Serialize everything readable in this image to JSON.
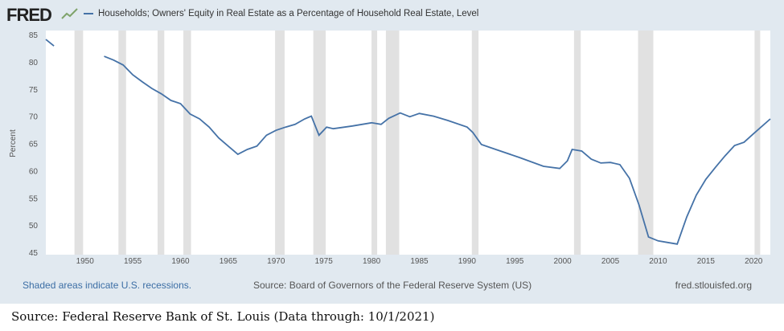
{
  "header": {
    "logo": "FRED",
    "title": "Households; Owners' Equity in Real Estate as a Percentage of Household Real Estate, Level"
  },
  "footer": {
    "recession_note": "Shaded areas indicate U.S. recessions.",
    "source": "Source: Board of Governors of the Federal Reserve System (US)",
    "site": "fred.stlouisfed.org"
  },
  "caption": "Source: Federal Reserve Bank of St. Louis (Data through: 10/1/2021)",
  "colors": {
    "line": "#4572a7",
    "recession": "#e1e1e1",
    "background": "#e1e9f0"
  },
  "chart_data": {
    "type": "line",
    "title": "Households; Owners' Equity in Real Estate as a Percentage of Household Real Estate, Level",
    "ylabel": "Percent",
    "xlabel": "",
    "ylim": [
      45,
      85
    ],
    "xlim": [
      1945.9,
      2021.75
    ],
    "yticks": [
      45,
      50,
      55,
      60,
      65,
      70,
      75,
      80,
      85
    ],
    "xticks": [
      1950,
      1955,
      1960,
      1965,
      1970,
      1975,
      1980,
      1985,
      1990,
      1995,
      2000,
      2005,
      2010,
      2015,
      2020
    ],
    "recessions": [
      [
        1948.9,
        1949.8
      ],
      [
        1953.5,
        1954.3
      ],
      [
        1957.6,
        1958.3
      ],
      [
        1960.3,
        1961.1
      ],
      [
        1969.9,
        1970.9
      ],
      [
        1973.9,
        1975.2
      ],
      [
        1980.0,
        1980.5
      ],
      [
        1981.5,
        1982.9
      ],
      [
        1990.5,
        1991.2
      ],
      [
        2001.2,
        2001.9
      ],
      [
        2007.9,
        2009.5
      ],
      [
        2020.1,
        2020.4
      ]
    ],
    "series": [
      {
        "name": "segment-1",
        "x": [
          1945.9,
          1946.75
        ],
        "y": [
          84.1,
          82.9
        ]
      },
      {
        "name": "segment-2",
        "x": [
          1952,
          1953,
          1954,
          1955,
          1956,
          1957,
          1958,
          1959,
          1960,
          1961,
          1962,
          1963,
          1964,
          1965,
          1966,
          1967,
          1968,
          1969,
          1970,
          1971,
          1972,
          1973,
          1973.7,
          1974.5,
          1975.3,
          1976,
          1978,
          1980,
          1981,
          1981.8,
          1983,
          1984,
          1985,
          1986.5,
          1988,
          1990,
          1990.6,
          1991.5,
          1993,
          1995.5,
          1998,
          1999.7,
          2000.5,
          2001,
          2002,
          2003,
          2004,
          2005,
          2006,
          2007,
          2008,
          2009,
          2010,
          2011,
          2012,
          2013,
          2014,
          2015,
          2016,
          2017,
          2018,
          2019,
          2020,
          2021.75
        ],
        "y": [
          81.0,
          80.3,
          79.4,
          77.6,
          76.3,
          75.1,
          74.1,
          72.9,
          72.3,
          70.4,
          69.5,
          68.0,
          66.0,
          64.5,
          63.0,
          63.9,
          64.5,
          66.5,
          67.4,
          68.0,
          68.5,
          69.5,
          70.0,
          66.5,
          68.0,
          67.7,
          68.2,
          68.8,
          68.5,
          69.6,
          70.6,
          69.9,
          70.5,
          70.0,
          69.2,
          68.0,
          67.0,
          64.8,
          63.9,
          62.4,
          60.8,
          60.4,
          61.8,
          63.9,
          63.6,
          62.1,
          61.4,
          61.5,
          61.1,
          58.6,
          53.7,
          47.8,
          47.1,
          46.8,
          46.5,
          51.5,
          55.5,
          58.4,
          60.6,
          62.7,
          64.6,
          65.2,
          66.8,
          69.5
        ]
      }
    ]
  }
}
